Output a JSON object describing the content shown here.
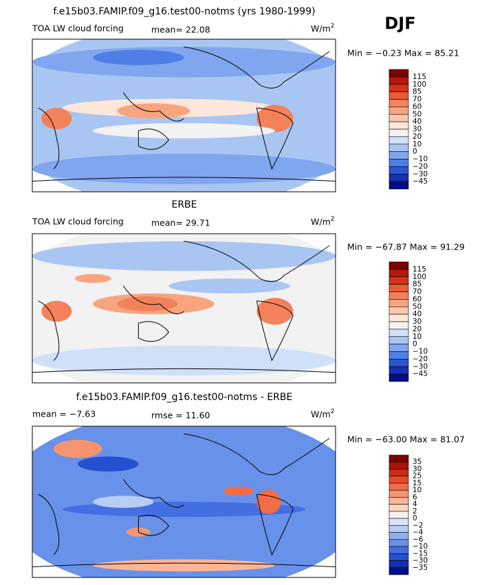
{
  "season": "DJF",
  "panels": [
    {
      "title": "f.e15b03.FAMIP.f09_g16.test00-notms (yrs 1980-1999)",
      "left_label": "TOA LW cloud forcing",
      "center_label": "mean=  22.08",
      "units": "W/m",
      "units_exp": "2",
      "minmax": "Min =  −0.23 Max =  85.21",
      "colorbar": {
        "labels": [
          "115",
          "100",
          "85",
          "70",
          "60",
          "50",
          "40",
          "30",
          "20",
          "10",
          "0",
          "−10",
          "−20",
          "−30",
          "−45"
        ],
        "colors": [
          "#7f0000",
          "#b2180b",
          "#d73016",
          "#ea5a33",
          "#f3825a",
          "#f8a57f",
          "#fbc8aa",
          "#fde7da",
          "#f2f2f2",
          "#cfe0f8",
          "#a9c6f3",
          "#7fa6ee",
          "#4f7fe6",
          "#2a55d6",
          "#1530b0",
          "#040e80"
        ]
      }
    },
    {
      "title": "ERBE",
      "left_label": "TOA LW cloud forcing",
      "center_label": "mean=  29.71",
      "units": "W/m",
      "units_exp": "2",
      "minmax": "Min = −67.87 Max =  91.29",
      "colorbar": {
        "labels": [
          "115",
          "100",
          "85",
          "70",
          "60",
          "50",
          "40",
          "30",
          "20",
          "10",
          "0",
          "−10",
          "−20",
          "−30",
          "−45"
        ],
        "colors": [
          "#7f0000",
          "#b2180b",
          "#d73016",
          "#ea5a33",
          "#f3825a",
          "#f8a57f",
          "#fbc8aa",
          "#fde7da",
          "#f2f2f2",
          "#cfe0f8",
          "#a9c6f3",
          "#7fa6ee",
          "#4f7fe6",
          "#2a55d6",
          "#1530b0",
          "#040e80"
        ]
      }
    },
    {
      "title": "f.e15b03.FAMIP.f09_g16.test00-notms - ERBE",
      "left_label": "mean =   −7.63",
      "center_label": "rmse =   11.60",
      "units": "W/m",
      "units_exp": "2",
      "minmax": "Min = −63.00 Max =  81.07",
      "colorbar": {
        "labels": [
          "35",
          "30",
          "25",
          "15",
          "10",
          "6",
          "4",
          "2",
          "0",
          "−2",
          "−4",
          "−6",
          "−10",
          "−15",
          "−30",
          "−35"
        ],
        "colors": [
          "#7f0000",
          "#a8140a",
          "#d02a14",
          "#e64a2a",
          "#f06d48",
          "#f69470",
          "#fab596",
          "#fcd5c0",
          "#f5f0ee",
          "#d8e4f8",
          "#b6cdf4",
          "#8eb1ef",
          "#6891ea",
          "#446fe2",
          "#2450d2",
          "#1230ae",
          "#040e80"
        ]
      }
    }
  ]
}
